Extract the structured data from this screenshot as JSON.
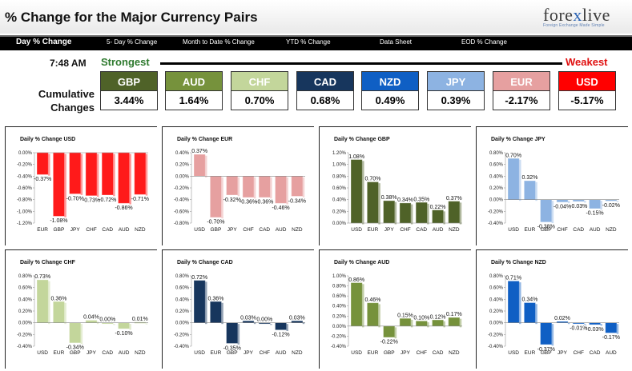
{
  "header": {
    "title": "% Change for the Major Currency Pairs",
    "logo_main_a": "fore",
    "logo_x": "x",
    "logo_main_b": "live",
    "logo_tagline": "Foreign Exchange Made Simple"
  },
  "nav": {
    "items": [
      {
        "label": "Day % Change",
        "active": true
      },
      {
        "label": "5- Day % Change"
      },
      {
        "label": "Month to Date % Change"
      },
      {
        "label": "YTD % Change"
      },
      {
        "label": "Data Sheet"
      },
      {
        "label": "EOD % Change"
      }
    ]
  },
  "summary": {
    "timestamp": "7:48 AM",
    "strongest_label": "Strongest",
    "weakest_label": "Weakest",
    "cumulative_label_1": "Cumulative",
    "cumulative_label_2": "Changes",
    "tiles": [
      {
        "currency": "GBP",
        "value": "3.44%",
        "color": "#4f6228"
      },
      {
        "currency": "AUD",
        "value": "1.64%",
        "color": "#76923c"
      },
      {
        "currency": "CHF",
        "value": "0.70%",
        "color": "#c3d69b"
      },
      {
        "currency": "CAD",
        "value": "0.68%",
        "color": "#17365d"
      },
      {
        "currency": "NZD",
        "value": "0.49%",
        "color": "#0f5fc4"
      },
      {
        "currency": "JPY",
        "value": "0.39%",
        "color": "#8db3e2"
      },
      {
        "currency": "EUR",
        "value": "-2.17%",
        "color": "#e6a0a0"
      },
      {
        "currency": "USD",
        "value": "-5.17%",
        "color": "#ff0000"
      }
    ]
  },
  "chart_data": [
    {
      "type": "bar",
      "title": "Daily % Change USD",
      "categories": [
        "EUR",
        "GBP",
        "JPY",
        "CHF",
        "CAD",
        "AUD",
        "NZD"
      ],
      "values": [
        -0.37,
        -1.08,
        -0.7,
        -0.73,
        -0.72,
        -0.86,
        -0.71
      ],
      "labels": [
        "-0.37%",
        "-1.08%",
        "-0.70%",
        "-0.73%",
        "-0.72%",
        "-0.86%",
        "-0.71%"
      ],
      "ylim": [
        -1.2,
        0.0
      ],
      "ticks": [
        "0.00%",
        "-0.20%",
        "-0.40%",
        "-0.60%",
        "-0.80%",
        "-1.00%",
        "-1.20%"
      ],
      "color": "#ff1a1a"
    },
    {
      "type": "bar",
      "title": "Daily % Change EUR",
      "categories": [
        "USD",
        "GBP",
        "JPY",
        "CHF",
        "CAD",
        "AUD",
        "NZD"
      ],
      "values": [
        0.37,
        -0.7,
        -0.32,
        -0.36,
        -0.36,
        -0.46,
        -0.34
      ],
      "labels": [
        "0.37%",
        "-0.70%",
        "-0.32%",
        "-0.36%",
        "-0.36%",
        "-0.46%",
        "-0.34%"
      ],
      "ylim": [
        -0.8,
        0.4
      ],
      "ticks": [
        "0.40%",
        "0.20%",
        "0.00%",
        "-0.20%",
        "-0.40%",
        "-0.60%",
        "-0.80%"
      ],
      "color": "#e6a0a0"
    },
    {
      "type": "bar",
      "title": "Daily % Change GBP",
      "categories": [
        "USD",
        "EUR",
        "JPY",
        "CHF",
        "CAD",
        "AUD",
        "NZD"
      ],
      "values": [
        1.08,
        0.7,
        0.38,
        0.34,
        0.35,
        0.22,
        0.37
      ],
      "labels": [
        "1.08%",
        "0.70%",
        "0.38%",
        "0.34%",
        "0.35%",
        "0.22%",
        "0.37%"
      ],
      "ylim": [
        0.0,
        1.2
      ],
      "ticks": [
        "1.20%",
        "1.00%",
        "0.80%",
        "0.60%",
        "0.40%",
        "0.20%",
        "0.00%"
      ],
      "color": "#4f6228"
    },
    {
      "type": "bar",
      "title": "Daily % Change JPY",
      "categories": [
        "USD",
        "EUR",
        "GBP",
        "CHF",
        "CAD",
        "AUD",
        "NZD"
      ],
      "values": [
        0.7,
        0.32,
        -0.38,
        -0.04,
        -0.03,
        -0.15,
        -0.02
      ],
      "labels": [
        "0.70%",
        "0.32%",
        "-0.38%",
        "-0.04%",
        "-0.03%",
        "-0.15%",
        "-0.02%"
      ],
      "ylim": [
        -0.4,
        0.8
      ],
      "ticks": [
        "0.80%",
        "0.60%",
        "0.40%",
        "0.20%",
        "0.00%",
        "-0.20%",
        "-0.40%"
      ],
      "color": "#8db3e2"
    },
    {
      "type": "bar",
      "title": "Daily % Change CHF",
      "categories": [
        "USD",
        "EUR",
        "GBP",
        "JPY",
        "CAD",
        "AUD",
        "NZD"
      ],
      "values": [
        0.73,
        0.36,
        -0.34,
        0.04,
        0.0,
        -0.1,
        0.01
      ],
      "labels": [
        "0.73%",
        "0.36%",
        "-0.34%",
        "0.04%",
        "0.00%",
        "-0.10%",
        "0.01%"
      ],
      "ylim": [
        -0.4,
        0.8
      ],
      "ticks": [
        "0.80%",
        "0.60%",
        "0.40%",
        "0.20%",
        "0.00%",
        "-0.20%",
        "-0.40%"
      ],
      "color": "#c3d69b"
    },
    {
      "type": "bar",
      "title": "Daily % Change CAD",
      "categories": [
        "USD",
        "EUR",
        "GBP",
        "JPY",
        "CHF",
        "AUD",
        "NZD"
      ],
      "values": [
        0.72,
        0.36,
        -0.35,
        0.03,
        0.0,
        -0.12,
        0.03
      ],
      "labels": [
        "0.72%",
        "0.36%",
        "-0.35%",
        "0.03%",
        "0.00%",
        "-0.12%",
        "0.03%"
      ],
      "ylim": [
        -0.4,
        0.8
      ],
      "ticks": [
        "0.80%",
        "0.60%",
        "0.40%",
        "0.20%",
        "0.00%",
        "-0.20%",
        "-0.40%"
      ],
      "color": "#17365d"
    },
    {
      "type": "bar",
      "title": "Daily % Change AUD",
      "categories": [
        "USD",
        "EUR",
        "GBP",
        "JPY",
        "CHF",
        "CAD",
        "NZD"
      ],
      "values": [
        0.86,
        0.46,
        -0.22,
        0.15,
        0.1,
        0.12,
        0.17
      ],
      "labels": [
        "0.86%",
        "0.46%",
        "-0.22%",
        "0.15%",
        "0.10%",
        "0.12%",
        "0.17%"
      ],
      "ylim": [
        -0.4,
        1.0
      ],
      "ticks": [
        "1.00%",
        "0.80%",
        "0.60%",
        "0.40%",
        "0.20%",
        "0.00%",
        "-0.20%",
        "-0.40%"
      ],
      "color": "#76923c"
    },
    {
      "type": "bar",
      "title": "Daily % Change NZD",
      "categories": [
        "USD",
        "EUR",
        "GBP",
        "JPY",
        "CHF",
        "CAD",
        "AUD"
      ],
      "values": [
        0.71,
        0.34,
        -0.37,
        0.02,
        -0.01,
        -0.03,
        -0.17
      ],
      "labels": [
        "0.71%",
        "0.34%",
        "-0.37%",
        "0.02%",
        "-0.01%",
        "-0.03%",
        "-0.17%"
      ],
      "ylim": [
        -0.4,
        0.8
      ],
      "ticks": [
        "0.80%",
        "0.60%",
        "0.40%",
        "0.20%",
        "0.00%",
        "-0.20%",
        "-0.40%"
      ],
      "color": "#0f5fc4"
    }
  ]
}
